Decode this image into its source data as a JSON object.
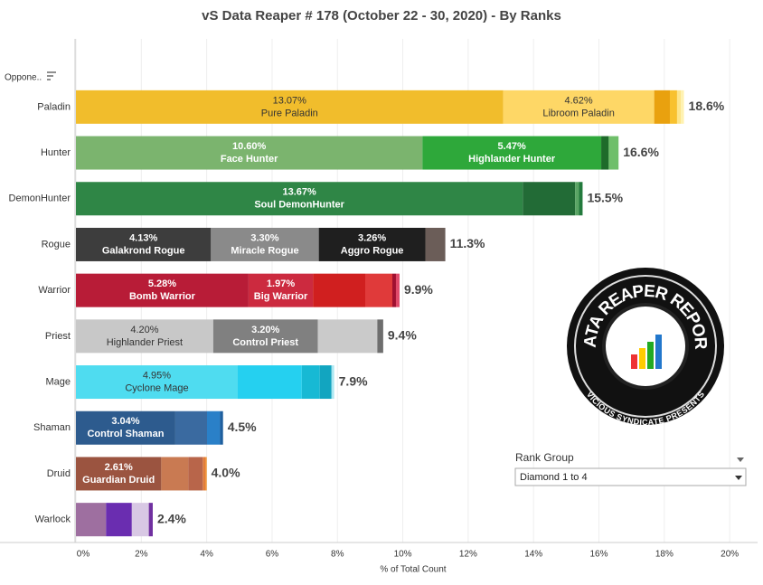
{
  "chart_data": {
    "type": "stacked-bar-horizontal",
    "title": "vS Data Reaper #  178 (October 22 - 30, 2020) - By Ranks",
    "row_header": "Oppone..",
    "x_label": "% of Total Count",
    "xlim": [
      0,
      20.3
    ],
    "xticks": [
      {
        "value": 0,
        "label": "0%"
      },
      {
        "value": 2,
        "label": "2%"
      },
      {
        "value": 4,
        "label": "4%"
      },
      {
        "value": 6,
        "label": "6%"
      },
      {
        "value": 8,
        "label": "8%"
      },
      {
        "value": 10,
        "label": "10%"
      },
      {
        "value": 12,
        "label": "12%"
      },
      {
        "value": 14,
        "label": "14%"
      },
      {
        "value": 16,
        "label": "16%"
      },
      {
        "value": 18,
        "label": "18%"
      },
      {
        "value": 20,
        "label": "20%"
      }
    ],
    "grid": true,
    "bars": [
      {
        "category": "Paladin",
        "total": 18.6,
        "total_label": "18.6%",
        "segments": [
          {
            "name": "Pure Paladin",
            "value": 13.07,
            "label": "13.07%",
            "color": "#f1bd2c"
          },
          {
            "name": "Libroom Paladin",
            "value": 4.62,
            "label": "4.62%",
            "color": "#fed766"
          },
          {
            "value": 0.48,
            "color": "#e9a10f"
          },
          {
            "value": 0.22,
            "color": "#f8c12e"
          },
          {
            "value": 0.12,
            "color": "#fde58a"
          },
          {
            "value": 0.09,
            "color": "#fff2b0"
          }
        ]
      },
      {
        "category": "Hunter",
        "total": 16.6,
        "total_label": "16.6%",
        "segments": [
          {
            "name": "Face Hunter",
            "value": 10.6,
            "label": "10.60%",
            "color": "#7bb46e"
          },
          {
            "name": "Highlander Hunter",
            "value": 5.47,
            "label": "5.47%",
            "color": "#2ea83a"
          },
          {
            "value": 0.23,
            "color": "#1e6b2a"
          },
          {
            "value": 0.3,
            "color": "#6fbf6a"
          }
        ]
      },
      {
        "category": "DemonHunter",
        "total": 15.5,
        "total_label": "15.5%",
        "segments": [
          {
            "name": "Soul DemonHunter",
            "value": 13.67,
            "label": "13.67%",
            "color": "#2f8646"
          },
          {
            "value": 1.6,
            "color": "#226b36"
          },
          {
            "value": 0.12,
            "color": "#5aa565"
          },
          {
            "value": 0.11,
            "color": "#237a3d"
          }
        ]
      },
      {
        "category": "Rogue",
        "total": 11.3,
        "total_label": "11.3%",
        "segments": [
          {
            "name": "Galakrond Rogue",
            "value": 4.13,
            "label": "4.13%",
            "color": "#3d3d3d"
          },
          {
            "name": "Miracle Rogue",
            "value": 3.3,
            "label": "3.30%",
            "color": "#8a8a8a"
          },
          {
            "name": "Aggro Rogue",
            "value": 3.26,
            "label": "3.26%",
            "color": "#1f1f1f"
          },
          {
            "value": 0.61,
            "color": "#6b5d58"
          }
        ]
      },
      {
        "category": "Warrior",
        "total": 9.9,
        "total_label": "9.9%",
        "segments": [
          {
            "name": "Bomb Warrior",
            "value": 5.28,
            "label": "5.28%",
            "color": "#b81c37"
          },
          {
            "name": "Big Warrior",
            "value": 1.97,
            "label": "1.97%",
            "color": "#cc2a3f"
          },
          {
            "value": 1.6,
            "color": "#d01f1f"
          },
          {
            "value": 0.83,
            "color": "#e03a3a"
          },
          {
            "value": 0.11,
            "color": "#a01030"
          },
          {
            "value": 0.11,
            "color": "#e04a6a"
          }
        ]
      },
      {
        "category": "Priest",
        "total": 9.4,
        "total_label": "9.4%",
        "segments": [
          {
            "name": "Highlander Priest",
            "value": 4.2,
            "label": "4.20%",
            "color": "#c8c8c8"
          },
          {
            "name": "Control Priest",
            "value": 3.2,
            "label": "3.20%",
            "color": "#808080"
          },
          {
            "value": 1.82,
            "color": "#cacaca"
          },
          {
            "value": 0.18,
            "color": "#6e6e6e"
          }
        ]
      },
      {
        "category": "Mage",
        "total": 7.9,
        "total_label": "7.9%",
        "segments": [
          {
            "name": "Cyclone Mage",
            "value": 4.95,
            "label": "4.95%",
            "color": "#4fdcf0"
          },
          {
            "value": 1.96,
            "color": "#25d0f0"
          },
          {
            "value": 0.55,
            "color": "#17b9d4"
          },
          {
            "value": 0.36,
            "color": "#12a5c0"
          },
          {
            "value": 0.08,
            "color": "#aee8f2"
          }
        ]
      },
      {
        "category": "Shaman",
        "total": 4.5,
        "total_label": "4.5%",
        "segments": [
          {
            "name": "Control Shaman",
            "value": 3.04,
            "label": "3.04%",
            "color": "#2d5b8e"
          },
          {
            "value": 0.97,
            "color": "#3a6aa0"
          },
          {
            "value": 0.4,
            "color": "#2a80c8"
          },
          {
            "value": 0.09,
            "color": "#1f5f9e"
          }
        ]
      },
      {
        "category": "Druid",
        "total": 4.0,
        "total_label": "4.0%",
        "segments": [
          {
            "name": "Guardian Druid",
            "value": 2.61,
            "label": "2.61%",
            "color": "#9b5440"
          },
          {
            "value": 0.83,
            "color": "#c97a52"
          },
          {
            "value": 0.44,
            "color": "#b8654a"
          },
          {
            "value": 0.08,
            "color": "#e07c3c"
          },
          {
            "value": 0.04,
            "color": "#f08a20"
          }
        ]
      },
      {
        "category": "Warlock",
        "total": 2.4,
        "total_label": "2.4%",
        "segments": [
          {
            "value": 0.92,
            "color": "#9e6fa0"
          },
          {
            "value": 0.79,
            "color": "#6a2db0"
          },
          {
            "value": 0.52,
            "color": "#d8c8e4"
          },
          {
            "value": 0.12,
            "color": "#7030a0"
          }
        ]
      }
    ]
  },
  "filter": {
    "title": "Rank Group",
    "value": "Diamond 1 to 4"
  },
  "logo": {
    "top": "DATA REAPER REPORT",
    "bottom": "VICIOUS SYNDICATE PRESENTS"
  }
}
